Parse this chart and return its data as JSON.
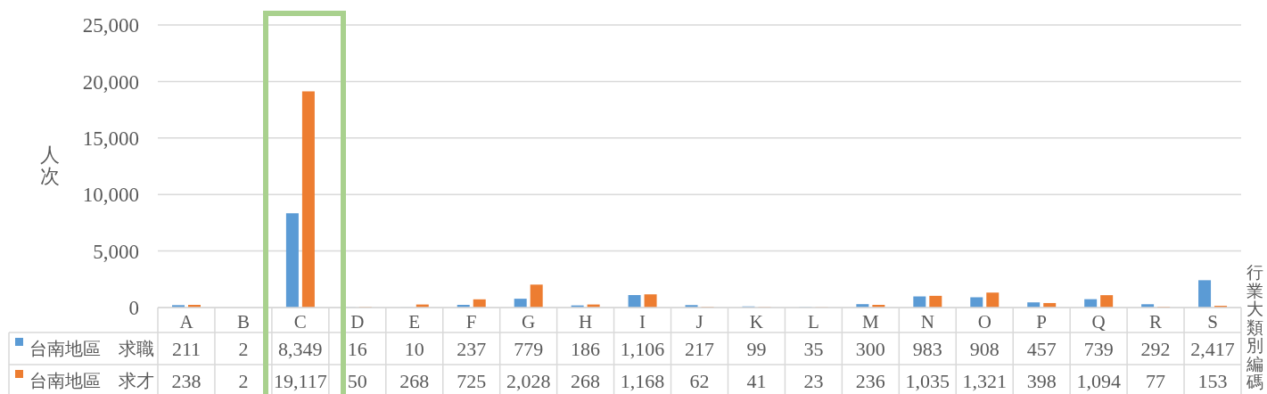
{
  "chart_data": {
    "type": "bar",
    "ylabel": "人次",
    "xlabel": "行業大類別編碼",
    "categories": [
      "A",
      "B",
      "C",
      "D",
      "E",
      "F",
      "G",
      "H",
      "I",
      "J",
      "K",
      "L",
      "M",
      "N",
      "O",
      "P",
      "Q",
      "R",
      "S"
    ],
    "series": [
      {
        "name": "台南地區　求職",
        "color": "#5b9bd5",
        "values": [
          211,
          2,
          8349,
          16,
          10,
          237,
          779,
          186,
          1106,
          217,
          99,
          35,
          300,
          983,
          908,
          457,
          739,
          292,
          2417
        ],
        "value_labels": [
          "211",
          "2",
          "8,349",
          "16",
          "10",
          "237",
          "779",
          "186",
          "1,106",
          "217",
          "99",
          "35",
          "300",
          "983",
          "908",
          "457",
          "739",
          "292",
          "2,417"
        ]
      },
      {
        "name": "台南地區　求才",
        "color": "#ed7d31",
        "values": [
          238,
          2,
          19117,
          50,
          268,
          725,
          2028,
          268,
          1168,
          62,
          41,
          23,
          236,
          1035,
          1321,
          398,
          1094,
          77,
          153
        ],
        "value_labels": [
          "238",
          "2",
          "19,117",
          "50",
          "268",
          "725",
          "2,028",
          "268",
          "1,168",
          "62",
          "41",
          "23",
          "236",
          "1,035",
          "1,321",
          "398",
          "1,094",
          "77",
          "153"
        ]
      }
    ],
    "ylim": [
      0,
      25000
    ],
    "yticks": [
      0,
      {
        "value": 5000,
        "label": "5,000"
      },
      {
        "value": 10000,
        "label": "10,000"
      },
      {
        "value": 15000,
        "label": "15,000"
      },
      {
        "value": 20000,
        "label": "20,000"
      },
      {
        "value": 25000,
        "label": "25,000"
      }
    ],
    "grid": "y",
    "legend": "bottom left"
  }
}
